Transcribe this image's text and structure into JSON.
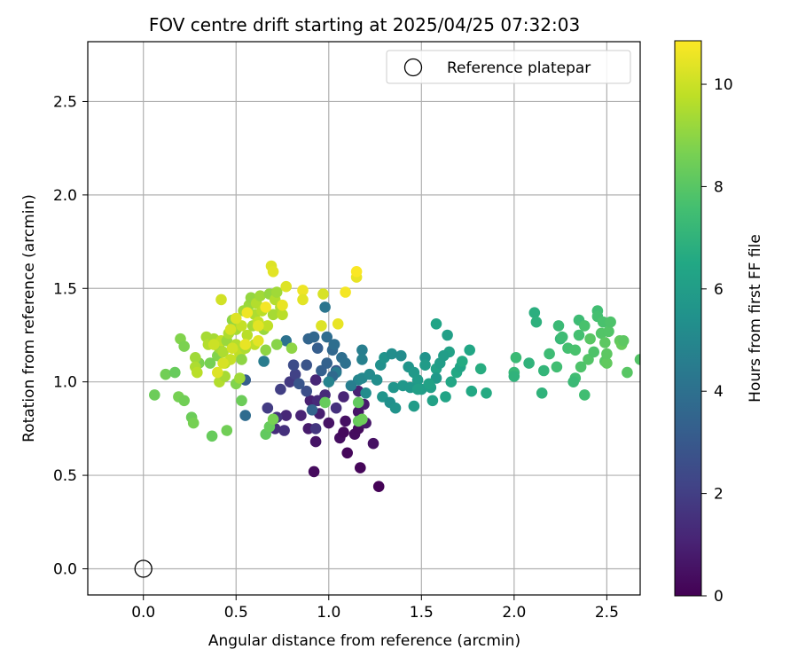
{
  "chart_data": {
    "type": "scatter",
    "title": "FOV centre drift starting at 2025/04/25 07:32:03",
    "xlabel": "Angular distance from reference (arcmin)",
    "ylabel": "Rotation from reference (arcmin)",
    "xlim": [
      -0.3,
      2.68
    ],
    "ylim": [
      -0.14,
      2.82
    ],
    "xticks": [
      "0.0",
      "0.5",
      "1.0",
      "1.5",
      "2.0",
      "2.5"
    ],
    "yticks": [
      "0.0",
      "0.5",
      "1.0",
      "1.5",
      "2.0",
      "2.5"
    ],
    "grid": true,
    "legend": {
      "placement": "upper-right",
      "entries": [
        "Reference platepar"
      ]
    },
    "colorbar": {
      "label": "Hours from first FF file",
      "min": 0,
      "max": 10.85,
      "ticks": [
        "0",
        "2",
        "4",
        "6",
        "8",
        "10"
      ],
      "colormap": "viridis"
    },
    "reference_point": {
      "x": 0.0,
      "y": 0.0
    },
    "series": [
      {
        "points": [
          [
            1.27,
            0.44,
            0.05
          ],
          [
            0.92,
            0.52,
            0.3
          ],
          [
            1.17,
            0.54,
            0.15
          ],
          [
            1.1,
            0.62,
            0.2
          ],
          [
            1.24,
            0.67,
            0.5
          ],
          [
            0.93,
            0.68,
            0.6
          ],
          [
            1.06,
            0.7,
            0.4
          ],
          [
            1.14,
            0.72,
            0.35
          ],
          [
            1.08,
            0.73,
            0.25
          ],
          [
            1.16,
            0.75,
            0.3
          ],
          [
            1.0,
            0.78,
            0.55
          ],
          [
            1.09,
            0.79,
            0.45
          ],
          [
            1.2,
            0.78,
            0.7
          ],
          [
            0.89,
            0.75,
            0.8
          ],
          [
            0.85,
            0.82,
            1.1
          ],
          [
            0.77,
            0.82,
            1.2
          ],
          [
            0.95,
            0.83,
            0.9
          ],
          [
            1.16,
            0.84,
            0.6
          ],
          [
            1.19,
            0.88,
            0.8
          ],
          [
            0.9,
            0.9,
            1.0
          ],
          [
            0.98,
            0.93,
            1.3
          ],
          [
            1.08,
            0.92,
            1.1
          ],
          [
            1.16,
            0.95,
            1.0
          ],
          [
            0.72,
            0.81,
            1.6
          ],
          [
            0.67,
            0.86,
            1.9
          ],
          [
            0.76,
            0.74,
            1.5
          ],
          [
            0.71,
            0.75,
            1.4
          ],
          [
            0.74,
            0.96,
            2.0
          ],
          [
            0.79,
            1.0,
            1.8
          ],
          [
            0.82,
            1.04,
            2.1
          ],
          [
            0.93,
            1.01,
            1.2
          ],
          [
            0.94,
            0.9,
            1.3
          ],
          [
            1.04,
            0.86,
            1.5
          ],
          [
            0.81,
            1.09,
            2.5
          ],
          [
            0.88,
            1.09,
            2.8
          ],
          [
            0.89,
            1.23,
            3.5
          ],
          [
            0.99,
            1.24,
            3.8
          ],
          [
            0.98,
            1.4,
            4.2
          ],
          [
            0.94,
            1.18,
            3.2
          ],
          [
            1.02,
            1.17,
            3.6
          ],
          [
            0.99,
            1.1,
            3.4
          ],
          [
            1.04,
            1.06,
            3.0
          ],
          [
            1.07,
            1.13,
            3.9
          ],
          [
            1.04,
            1.05,
            4.4
          ],
          [
            1.09,
            1.1,
            4.0
          ],
          [
            0.96,
            1.06,
            3.3
          ],
          [
            0.92,
            1.24,
            3.6
          ],
          [
            1.03,
            1.2,
            3.9
          ],
          [
            0.88,
            0.95,
            2.6
          ],
          [
            0.84,
            0.99,
            2.9
          ],
          [
            0.77,
            1.22,
            4.1
          ],
          [
            0.55,
            1.01,
            3.2
          ],
          [
            0.65,
            1.11,
            4.5
          ],
          [
            0.55,
            0.82,
            3.8
          ],
          [
            1.02,
            1.03,
            3.7
          ],
          [
            1.0,
            1.0,
            4.8
          ],
          [
            0.91,
            0.85,
            3.5
          ],
          [
            0.93,
            0.75,
            1.7
          ],
          [
            1.18,
            1.17,
            4.6
          ],
          [
            1.18,
            1.12,
            4.7
          ],
          [
            1.16,
            1.01,
            4.9
          ],
          [
            1.18,
            1.02,
            5.0
          ],
          [
            1.22,
            1.04,
            5.1
          ],
          [
            1.2,
            0.94,
            5.2
          ],
          [
            1.26,
            1.01,
            5.3
          ],
          [
            1.28,
            1.09,
            5.4
          ],
          [
            1.3,
            1.13,
            5.5
          ],
          [
            1.34,
            1.15,
            5.3
          ],
          [
            1.29,
            0.92,
            5.6
          ],
          [
            1.33,
            0.89,
            5.4
          ],
          [
            1.36,
            0.86,
            5.5
          ],
          [
            1.35,
            0.97,
            5.6
          ],
          [
            1.4,
            0.98,
            5.7
          ],
          [
            1.43,
            1.08,
            5.6
          ],
          [
            1.46,
            1.05,
            5.8
          ],
          [
            1.48,
            1.01,
            5.9
          ],
          [
            1.44,
            0.97,
            5.7
          ],
          [
            1.46,
            0.87,
            5.9
          ],
          [
            1.5,
            0.96,
            6.0
          ],
          [
            1.52,
            1.13,
            5.5
          ],
          [
            1.55,
            0.97,
            6.1
          ],
          [
            1.58,
            1.07,
            6.2
          ],
          [
            1.6,
            1.1,
            6.0
          ],
          [
            1.58,
            1.02,
            5.8
          ],
          [
            1.54,
            0.99,
            6.2
          ],
          [
            1.58,
            1.31,
            6.3
          ],
          [
            1.63,
            0.92,
            6.3
          ],
          [
            1.65,
            1.16,
            6.2
          ],
          [
            1.64,
            1.25,
            6.1
          ],
          [
            1.66,
            1.0,
            6.4
          ],
          [
            1.69,
            1.05,
            6.5
          ],
          [
            1.71,
            1.08,
            6.3
          ],
          [
            1.72,
            1.11,
            6.6
          ],
          [
            1.76,
            1.17,
            6.4
          ],
          [
            1.77,
            0.95,
            6.5
          ],
          [
            1.82,
            1.07,
            6.7
          ],
          [
            1.85,
            0.94,
            6.6
          ],
          [
            1.56,
            0.9,
            6.2
          ],
          [
            1.39,
            1.14,
            5.2
          ],
          [
            1.52,
            1.09,
            5.9
          ],
          [
            1.12,
            0.98,
            4.6
          ],
          [
            1.62,
            1.14,
            6.0
          ],
          [
            1.48,
            0.96,
            6.1
          ],
          [
            2.0,
            1.05,
            7.2
          ],
          [
            2.01,
            1.13,
            7.3
          ],
          [
            2.08,
            1.1,
            7.0
          ],
          [
            2.11,
            1.37,
            6.8
          ],
          [
            2.12,
            1.32,
            6.9
          ],
          [
            2.15,
            0.94,
            7.0
          ],
          [
            2.16,
            1.06,
            7.1
          ],
          [
            2.19,
            1.15,
            7.4
          ],
          [
            2.23,
            1.08,
            7.5
          ],
          [
            2.24,
            1.3,
            7.3
          ],
          [
            2.25,
            1.23,
            7.2
          ],
          [
            2.26,
            1.24,
            7.4
          ],
          [
            2.29,
            1.18,
            7.6
          ],
          [
            2.33,
            1.02,
            7.5
          ],
          [
            2.33,
            1.17,
            7.7
          ],
          [
            2.35,
            1.25,
            7.6
          ],
          [
            2.35,
            1.33,
            7.4
          ],
          [
            2.36,
            1.08,
            7.8
          ],
          [
            2.38,
            0.93,
            7.5
          ],
          [
            2.38,
            1.3,
            7.7
          ],
          [
            2.4,
            1.12,
            7.9
          ],
          [
            2.41,
            1.23,
            8.0
          ],
          [
            2.43,
            1.16,
            7.8
          ],
          [
            2.45,
            1.38,
            7.5
          ],
          [
            2.45,
            1.35,
            7.6
          ],
          [
            2.47,
            1.26,
            7.9
          ],
          [
            2.48,
            1.32,
            7.7
          ],
          [
            2.49,
            1.21,
            8.1
          ],
          [
            2.49,
            1.11,
            8.0
          ],
          [
            2.5,
            1.1,
            8.2
          ],
          [
            2.5,
            1.15,
            8.1
          ],
          [
            2.51,
            1.27,
            7.9
          ],
          [
            2.52,
            1.32,
            7.8
          ],
          [
            2.57,
            1.22,
            8.2
          ],
          [
            2.58,
            1.2,
            8.3
          ],
          [
            2.59,
            1.22,
            8.1
          ],
          [
            2.61,
            1.05,
            8.0
          ],
          [
            2.68,
            1.12,
            7.9
          ],
          [
            2.32,
            1.0,
            7.3
          ],
          [
            2.0,
            1.03,
            7.0
          ],
          [
            0.06,
            0.93,
            8.4
          ],
          [
            0.12,
            1.04,
            8.5
          ],
          [
            0.17,
            1.05,
            8.3
          ],
          [
            0.19,
            0.92,
            8.6
          ],
          [
            0.2,
            1.23,
            8.8
          ],
          [
            0.22,
            0.9,
            8.5
          ],
          [
            0.22,
            1.19,
            8.7
          ],
          [
            0.26,
            0.81,
            8.4
          ],
          [
            0.27,
            0.78,
            8.6
          ],
          [
            0.37,
            0.71,
            8.3
          ],
          [
            0.45,
            0.74,
            8.5
          ],
          [
            0.5,
            0.99,
            8.8
          ],
          [
            0.53,
            0.9,
            8.4
          ],
          [
            0.66,
            0.72,
            8.2
          ],
          [
            0.68,
            0.76,
            8.3
          ],
          [
            0.7,
            0.8,
            8.6
          ],
          [
            0.72,
            1.2,
            8.9
          ],
          [
            0.8,
            1.18,
            9.0
          ],
          [
            0.98,
            0.89,
            8.3
          ],
          [
            1.16,
            0.89,
            8.2
          ],
          [
            1.16,
            0.79,
            8.3
          ],
          [
            1.18,
            0.8,
            8.4
          ],
          [
            0.3,
            1.1,
            8.7
          ],
          [
            0.4,
            1.14,
            8.8
          ],
          [
            0.36,
            1.1,
            8.6
          ],
          [
            0.28,
            1.13,
            9.3
          ],
          [
            0.28,
            1.08,
            9.5
          ],
          [
            0.29,
            1.05,
            9.7
          ],
          [
            0.34,
            1.24,
            9.4
          ],
          [
            0.35,
            1.2,
            9.6
          ],
          [
            0.38,
            1.23,
            9.4
          ],
          [
            0.41,
            1.18,
            9.3
          ],
          [
            0.42,
            1.22,
            9.8
          ],
          [
            0.43,
            1.16,
            9.5
          ],
          [
            0.44,
            1.1,
            9.7
          ],
          [
            0.45,
            1.22,
            9.2
          ],
          [
            0.46,
            1.26,
            9.5
          ],
          [
            0.47,
            1.12,
            9.9
          ],
          [
            0.48,
            1.33,
            9.0
          ],
          [
            0.5,
            1.28,
            9.4
          ],
          [
            0.5,
            1.2,
            9.6
          ],
          [
            0.52,
            1.15,
            9.8
          ],
          [
            0.53,
            1.3,
            9.9
          ],
          [
            0.54,
            1.38,
            9.3
          ],
          [
            0.55,
            1.18,
            9.5
          ],
          [
            0.56,
            1.25,
            9.7
          ],
          [
            0.57,
            1.41,
            9.2
          ],
          [
            0.58,
            1.45,
            9.1
          ],
          [
            0.59,
            1.3,
            9.4
          ],
          [
            0.6,
            1.2,
            9.8
          ],
          [
            0.6,
            1.36,
            9.5
          ],
          [
            0.61,
            1.42,
            9.6
          ],
          [
            0.62,
            1.32,
            9.9
          ],
          [
            0.63,
            1.46,
            9.3
          ],
          [
            0.64,
            1.38,
            9.7
          ],
          [
            0.65,
            1.28,
            9.2
          ],
          [
            0.66,
            1.17,
            9.0
          ],
          [
            0.67,
            1.3,
            9.8
          ],
          [
            0.68,
            1.47,
            9.1
          ],
          [
            0.7,
            1.36,
            9.4
          ],
          [
            0.71,
            1.44,
            9.6
          ],
          [
            0.72,
            1.48,
            9.3
          ],
          [
            0.74,
            1.4,
            9.5
          ],
          [
            0.75,
            1.36,
            9.7
          ],
          [
            0.52,
            1.02,
            9.3
          ],
          [
            0.41,
            1.0,
            9.6
          ],
          [
            0.44,
            1.03,
            9.4
          ],
          [
            0.53,
            1.12,
            9.0
          ],
          [
            0.69,
            1.62,
            10.3
          ],
          [
            0.7,
            1.59,
            10.4
          ],
          [
            0.75,
            1.41,
            10.5
          ],
          [
            0.77,
            1.51,
            10.3
          ],
          [
            0.86,
            1.49,
            10.6
          ],
          [
            0.86,
            1.44,
            10.4
          ],
          [
            0.97,
            1.47,
            10.2
          ],
          [
            0.96,
            1.3,
            10.3
          ],
          [
            1.05,
            1.31,
            10.5
          ],
          [
            1.09,
            1.48,
            10.7
          ],
          [
            1.15,
            1.56,
            10.5
          ],
          [
            1.15,
            1.59,
            10.8
          ],
          [
            0.42,
            1.44,
            10.1
          ],
          [
            0.47,
            1.28,
            10.2
          ],
          [
            0.5,
            1.34,
            10.3
          ],
          [
            0.56,
            1.37,
            10.6
          ],
          [
            0.62,
            1.3,
            10.4
          ],
          [
            0.66,
            1.4,
            10.7
          ],
          [
            0.48,
            1.18,
            10.1
          ],
          [
            0.43,
            1.1,
            10.2
          ],
          [
            0.4,
            1.05,
            10.3
          ],
          [
            0.55,
            1.2,
            10.5
          ],
          [
            0.38,
            1.2,
            10.0
          ],
          [
            0.62,
            1.22,
            10.4
          ]
        ]
      }
    ]
  }
}
